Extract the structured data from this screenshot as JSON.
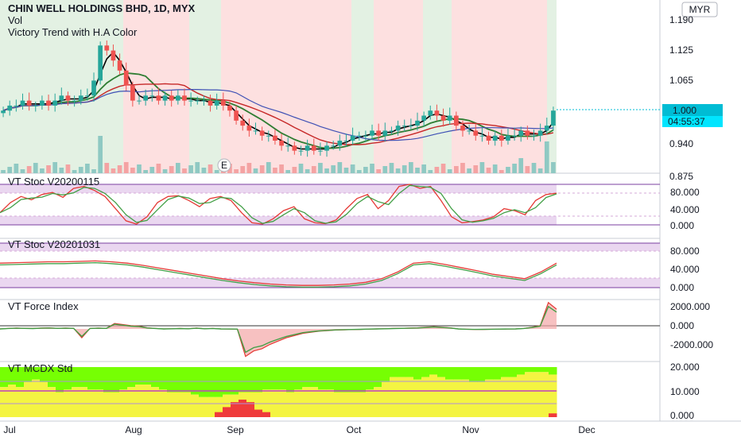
{
  "header": {
    "symbol_line": "CHIN WELL HOLDINGS BHD, 1D, MYX",
    "vol_label": "Vol",
    "indicator_label": "Victory Trend with H.A Color"
  },
  "currency_button": "MYR",
  "earnings_marker": "E",
  "price_tag": {
    "value": "1.000",
    "countdown": "04:55:37",
    "color": "#00bcd4"
  },
  "colors": {
    "up": "#26a69a",
    "down": "#ef5350",
    "bg_green": "#e3f1e3",
    "bg_red": "#fde0e0",
    "band": "#ead7f0",
    "mcdx_green": "#76ff03",
    "mcdx_yellow": "#f4f442",
    "mcdx_red": "#ef3b3b"
  },
  "chart_data": [
    {
      "type": "candlestick",
      "title": "CHIN WELL HOLDINGS BHD, 1D, MYX",
      "y_ticks": [
        "1.190",
        "1.125",
        "1.065",
        "1.000",
        "0.940",
        "0.875"
      ],
      "ylim": [
        0.875,
        1.205
      ],
      "x_ticks": [
        "Jul",
        "Aug",
        "Sep",
        "Oct",
        "Nov",
        "Dec"
      ],
      "series": [
        {
          "name": "Close (approx.)",
          "values": [
            1.0,
            1.01,
            1.01,
            1.02,
            1.01,
            1.01,
            1.02,
            1.01,
            1.02,
            1.03,
            1.02,
            1.02,
            1.03,
            1.03,
            1.06,
            1.13,
            1.12,
            1.1,
            1.08,
            1.05,
            1.02,
            1.02,
            1.03,
            1.03,
            1.02,
            1.03,
            1.02,
            1.03,
            1.02,
            1.02,
            1.02,
            1.02,
            1.01,
            1.02,
            1.01,
            1.0,
            0.98,
            0.97,
            0.96,
            0.96,
            0.95,
            0.95,
            0.94,
            0.93,
            0.93,
            0.92,
            0.92,
            0.93,
            0.92,
            0.92,
            0.93,
            0.93,
            0.94,
            0.94,
            0.95,
            0.95,
            0.95,
            0.96,
            0.95,
            0.96,
            0.96,
            0.97,
            0.97,
            0.97,
            0.98,
            0.99,
            1.0,
            0.99,
            0.98,
            0.99,
            0.97,
            0.96,
            0.96,
            0.95,
            0.95,
            0.94,
            0.95,
            0.94,
            0.95,
            0.95,
            0.96,
            0.95,
            0.95,
            0.96,
            0.97,
            1.0
          ]
        }
      ]
    },
    {
      "type": "line",
      "title": "VT Stoc V20200115",
      "y_ticks": [
        "80.000",
        "40.000",
        "0.000"
      ],
      "ylim": [
        0,
        100
      ],
      "series": [
        {
          "name": "K",
          "values": [
            30,
            55,
            70,
            62,
            75,
            80,
            68,
            90,
            95,
            85,
            70,
            40,
            10,
            2,
            20,
            55,
            70,
            72,
            60,
            45,
            65,
            70,
            60,
            30,
            5,
            2,
            15,
            35,
            45,
            15,
            5,
            3,
            12,
            40,
            65,
            75,
            40,
            60,
            95,
            100,
            90,
            95,
            60,
            20,
            5,
            8,
            12,
            20,
            40,
            35,
            25,
            60,
            75,
            78
          ]
        }
      ]
    },
    {
      "type": "line",
      "title": "VT Stoc V20201031",
      "y_ticks": [
        "80.000",
        "40.000",
        "0.000"
      ],
      "ylim": [
        0,
        100
      ],
      "series": [
        {
          "name": "K",
          "values": [
            55,
            56,
            57,
            58,
            58,
            59,
            60,
            58,
            55,
            50,
            44,
            38,
            32,
            26,
            20,
            15,
            11,
            8,
            6,
            5,
            5,
            6,
            8,
            12,
            20,
            35,
            55,
            58,
            52,
            45,
            38,
            30,
            25,
            20,
            35,
            55
          ]
        }
      ]
    },
    {
      "type": "area",
      "title": "VT Force Index",
      "y_ticks": [
        "2000.000",
        "0.000",
        "-2000.000"
      ],
      "ylim": [
        -2600,
        2600
      ],
      "series": [
        {
          "name": "Force",
          "values": [
            0,
            50,
            80,
            60,
            40,
            80,
            100,
            60,
            80,
            60,
            -800,
            50,
            80,
            60,
            500,
            400,
            300,
            250,
            100,
            50,
            0,
            20,
            40,
            20,
            80,
            20,
            50,
            0,
            -10,
            -20,
            -2500,
            -2000,
            -1800,
            -1400,
            -1100,
            -800,
            -600,
            -400,
            -300,
            -200,
            -150,
            -100,
            -80,
            -60,
            -40,
            -20,
            0,
            20,
            40,
            60,
            80,
            100,
            150,
            200,
            150,
            100,
            0,
            -30,
            -50,
            -40,
            -30,
            -20,
            -10,
            0,
            50,
            150,
            300,
            2400,
            1800
          ]
        }
      ]
    },
    {
      "type": "bar",
      "title": "VT MCDX Std",
      "y_ticks": [
        "20.000",
        "10.000",
        "0.000"
      ],
      "ylim": [
        0,
        20
      ],
      "series": [
        {
          "name": "Green",
          "values": [
            12,
            13,
            12,
            14,
            15,
            14,
            12,
            10,
            11,
            12,
            12,
            11,
            11,
            10,
            10,
            11,
            12,
            13,
            13,
            12,
            11,
            10,
            10,
            10,
            9,
            8,
            8,
            8,
            9,
            9,
            10,
            10,
            10,
            11,
            11,
            11,
            10,
            11,
            12,
            12,
            11,
            11,
            10,
            10,
            10,
            10,
            11,
            12,
            14,
            16,
            16,
            16,
            15,
            16,
            17,
            16,
            15,
            15,
            15,
            14,
            14,
            15,
            15,
            16,
            16,
            17,
            18,
            18,
            18,
            17
          ]
        },
        {
          "name": "Red",
          "values": [
            0,
            0,
            0,
            0,
            0,
            0,
            0,
            0,
            0,
            0,
            0,
            0,
            0,
            0,
            0,
            0,
            0,
            0,
            0,
            0,
            0,
            0,
            0,
            0,
            0,
            0,
            0,
            2,
            4,
            6,
            7,
            6,
            3,
            2,
            0,
            0,
            0,
            0,
            0,
            0,
            0,
            0,
            0,
            0,
            0,
            0,
            0,
            0,
            0,
            0,
            0,
            0,
            0,
            0,
            0,
            0,
            0,
            0,
            0,
            0,
            0,
            0,
            0,
            0,
            0,
            0,
            0,
            0,
            0,
            1.5
          ]
        }
      ]
    }
  ]
}
